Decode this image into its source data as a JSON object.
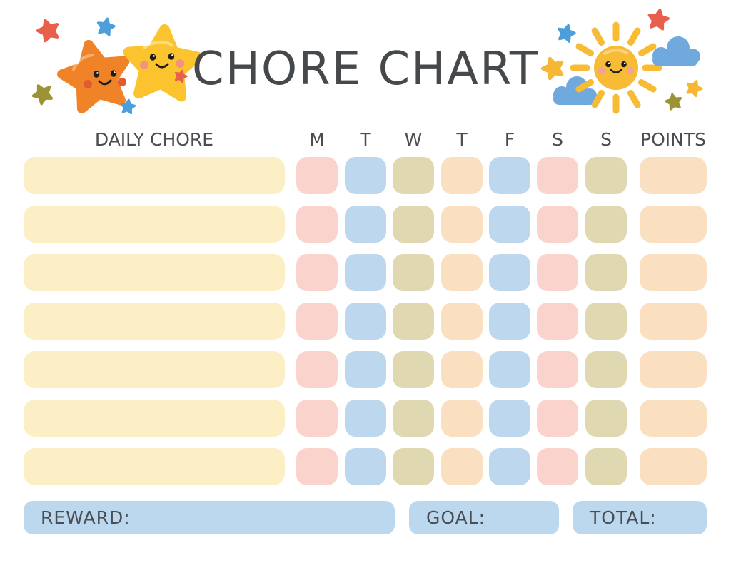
{
  "title": "CHORE CHART",
  "colors": {
    "cream": "#FCEFC6",
    "pink": "#FAD3CC",
    "blue": "#BCD7EE",
    "olive": "#DFD8B1",
    "peach": "#FBDFC1",
    "footer_blue": "#BCD8EE",
    "text_dark": "#4A4D51",
    "star_orange": "#F08327",
    "star_yellow": "#FBC42E",
    "sun_yellow": "#F8BB35",
    "cloud_blue": "#70A9DD",
    "accent_red": "#E8604C",
    "accent_blue": "#4D9FDC",
    "accent_olive": "#9C9434"
  },
  "table": {
    "chore_header": "DAILY CHORE",
    "day_headers": [
      "M",
      "T",
      "W",
      "T",
      "F",
      "S",
      "S"
    ],
    "points_header": "POINTS",
    "row_count": 7,
    "row_cell_colors": [
      "pink",
      "blue",
      "olive",
      "peach",
      "blue",
      "pink",
      "olive"
    ],
    "points_cell_color": "peach",
    "chore_values": [
      "",
      "",
      "",
      "",
      "",
      "",
      ""
    ]
  },
  "footer": {
    "reward_label": "REWARD:",
    "goal_label": "GOAL:",
    "total_label": "TOTAL:"
  }
}
